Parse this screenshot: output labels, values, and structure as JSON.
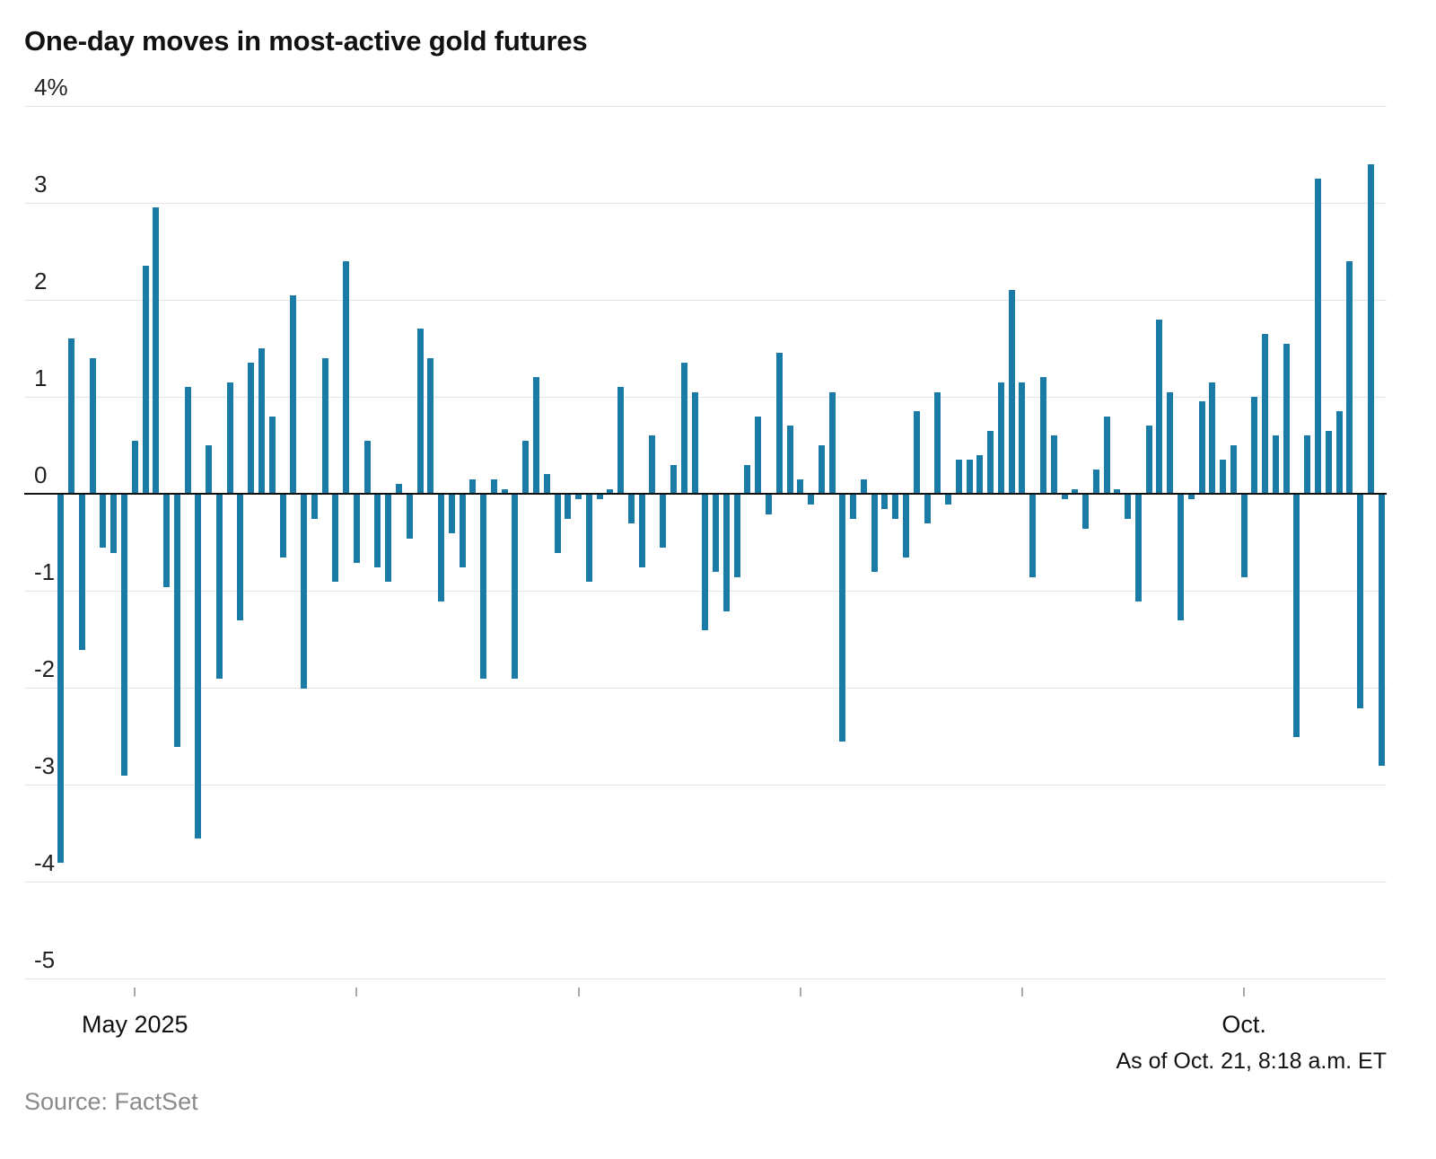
{
  "title": "One-day moves in most-active gold futures",
  "source_note": "Source: FactSet",
  "as_of_note": "As of Oct. 21, 8:18 a.m. ET",
  "chart_data": {
    "type": "bar",
    "title": "One-day moves in most-active gold futures",
    "unit": "percent",
    "color": "#1a7ba6",
    "ylim": [
      -5,
      4
    ],
    "grid": true,
    "ytick_values": [
      4,
      3,
      2,
      1,
      0,
      -1,
      -2,
      -3,
      -4,
      -5
    ],
    "ytick_labels": [
      "4%",
      "3",
      "2",
      "1",
      "0",
      "-1",
      "-2",
      "-3",
      "-4",
      "-5"
    ],
    "xticks": [
      {
        "pos": 7,
        "label": "May 2025"
      },
      {
        "pos": 28,
        "label": ""
      },
      {
        "pos": 49,
        "label": ""
      },
      {
        "pos": 70,
        "label": ""
      },
      {
        "pos": 91,
        "label": ""
      },
      {
        "pos": 112,
        "label": "Oct."
      }
    ],
    "values": [
      -3.8,
      1.6,
      -1.6,
      1.4,
      -0.55,
      -0.6,
      -2.9,
      0.55,
      2.35,
      2.95,
      -0.95,
      -2.6,
      1.1,
      -3.55,
      0.5,
      -1.9,
      1.15,
      -1.3,
      1.35,
      1.5,
      0.8,
      -0.65,
      2.05,
      -2.0,
      -0.25,
      1.4,
      -0.9,
      2.4,
      -0.7,
      0.55,
      -0.75,
      -0.9,
      0.1,
      -0.45,
      1.7,
      1.4,
      -1.1,
      -0.4,
      -0.75,
      0.15,
      -1.9,
      0.15,
      0.05,
      -1.9,
      0.55,
      1.2,
      0.2,
      -0.6,
      -0.25,
      -0.05,
      -0.9,
      -0.05,
      0.05,
      1.1,
      -0.3,
      -0.75,
      0.6,
      -0.55,
      0.3,
      1.35,
      1.05,
      -1.4,
      -0.8,
      -1.2,
      -0.85,
      0.3,
      0.8,
      -0.2,
      1.45,
      0.7,
      0.15,
      -0.1,
      0.5,
      1.05,
      -2.55,
      -0.25,
      0.15,
      -0.8,
      -0.15,
      -0.25,
      -0.65,
      0.85,
      -0.3,
      1.05,
      -0.1,
      0.35,
      0.35,
      0.4,
      0.65,
      1.15,
      2.1,
      1.15,
      -0.85,
      1.2,
      0.6,
      -0.05,
      0.05,
      -0.35,
      0.25,
      0.8,
      0.05,
      -0.25,
      -1.1,
      0.7,
      1.8,
      1.05,
      -1.3,
      -0.05,
      0.95,
      1.15,
      0.35,
      0.5,
      -0.85,
      1.0,
      1.65,
      0.6,
      1.55,
      -2.5,
      0.6,
      3.25,
      0.65,
      0.85,
      2.4,
      -2.2,
      3.4,
      -2.8
    ]
  }
}
